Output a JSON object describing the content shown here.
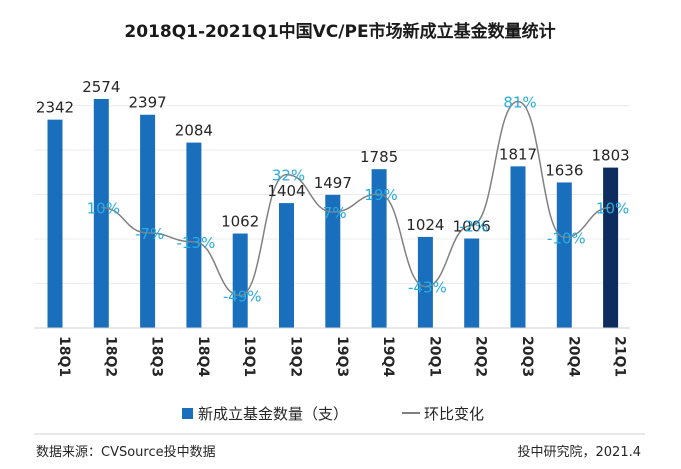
{
  "chart_data": {
    "type": "bar",
    "title": "2018Q1-2021Q1中国VC/PE市场新成立基金数量统计",
    "categories": [
      "18Q1",
      "18Q2",
      "18Q3",
      "18Q4",
      "19Q1",
      "19Q2",
      "19Q3",
      "19Q4",
      "20Q1",
      "20Q2",
      "20Q3",
      "20Q4",
      "21Q1"
    ],
    "series": [
      {
        "name": "新成立基金数量（支）",
        "type": "bar",
        "values": [
          2342,
          2574,
          2397,
          2084,
          1062,
          1404,
          1497,
          1785,
          1024,
          1006,
          1817,
          1636,
          1803
        ],
        "color": "#1a6fbd",
        "highlight_last_color": "#0d2d5e"
      },
      {
        "name": "环比变化",
        "type": "line",
        "values": [
          null,
          10,
          -7,
          -13,
          -49,
          32,
          7,
          19,
          -43,
          -2,
          81,
          -10,
          10
        ],
        "labels": [
          "",
          "10%",
          "-7%",
          "-13%",
          "-49%",
          "32%",
          "7%",
          "19%",
          "-43%",
          "-2%",
          "81%",
          "-10%",
          "10%"
        ],
        "color": "#808080",
        "label_color": "#29abe2"
      }
    ],
    "ylim": [
      0,
      2900
    ],
    "grid": true,
    "legend_position": "bottom"
  },
  "footer": {
    "source": "数据来源：CVSource投中数据",
    "credit": "投中研究院，2021.4"
  }
}
